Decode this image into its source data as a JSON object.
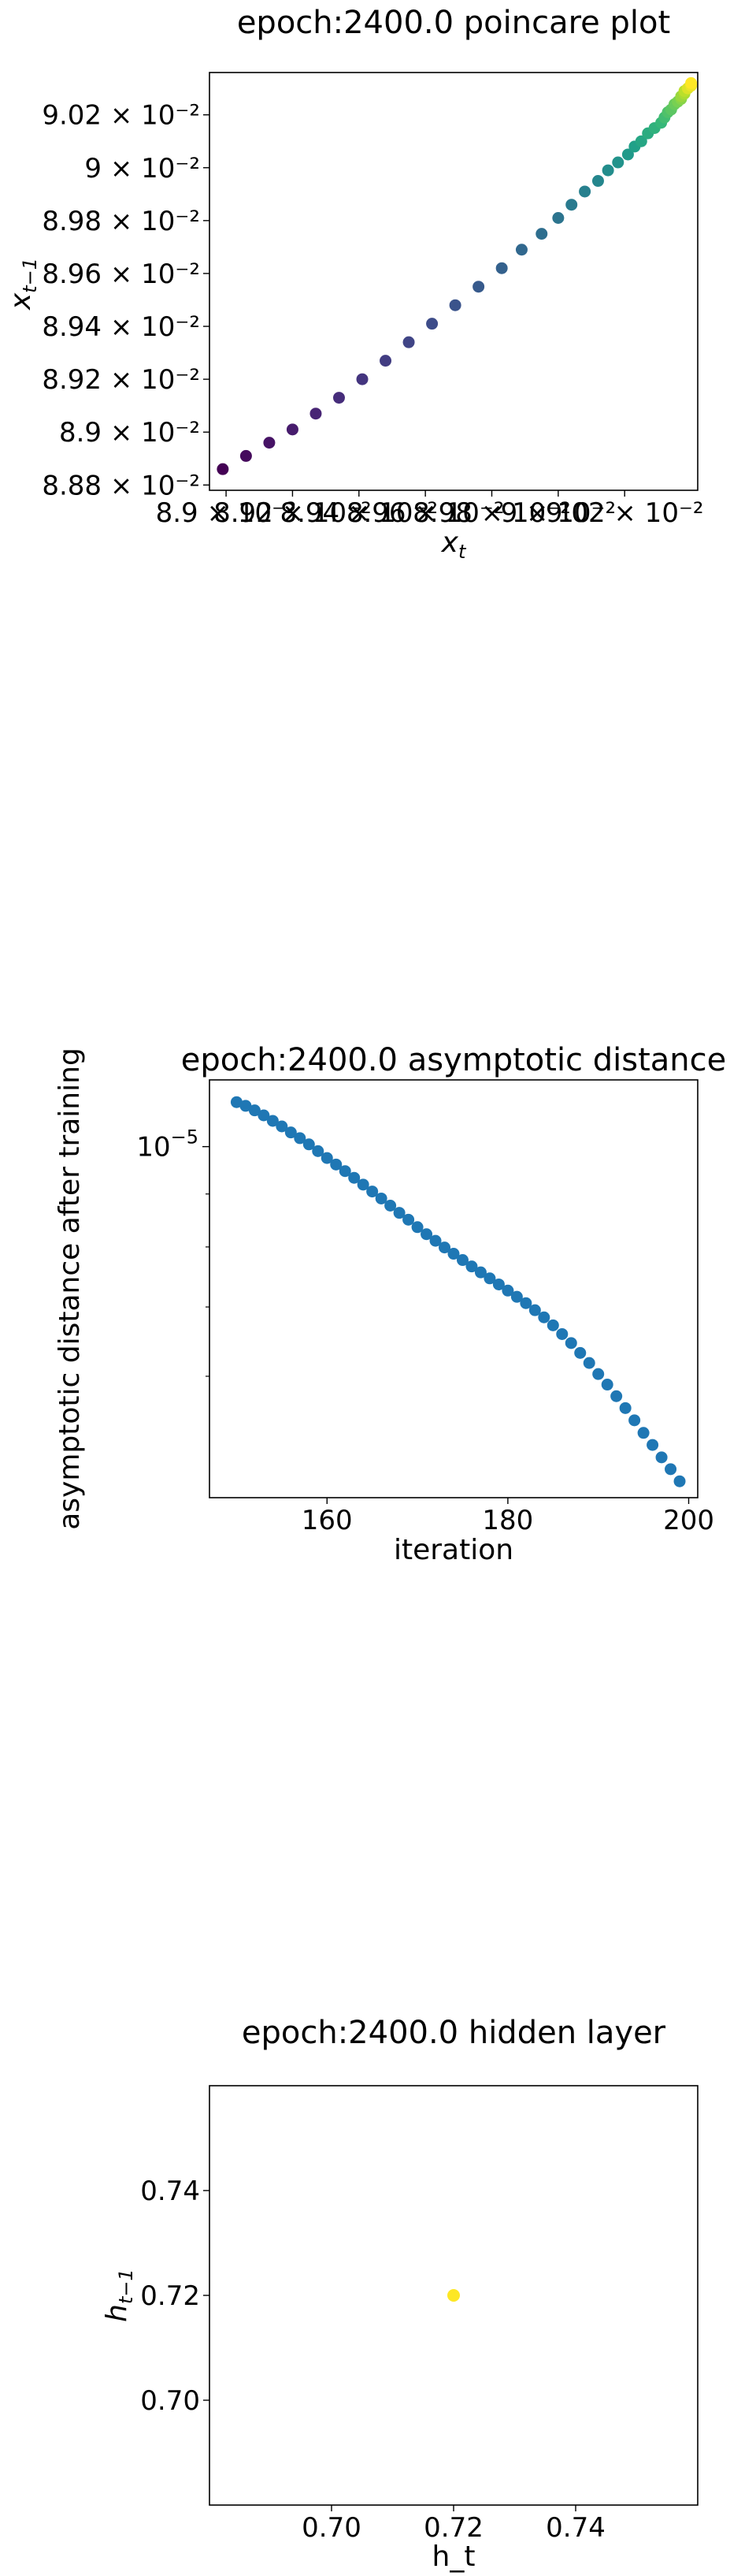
{
  "chart_data": [
    {
      "type": "scatter",
      "title": "epoch:2400.0 poincare plot",
      "xlabel_base": "x",
      "xlabel_sub": "t",
      "ylabel_base": "x",
      "ylabel_sub": "t−1",
      "color_map": "viridis",
      "xlim": [
        0.08895,
        0.09042
      ],
      "ylim": [
        0.08878,
        0.09036
      ],
      "x_tick_labels": [
        "8.9 × 10⁻²",
        "8.92 × 10⁻²",
        "8.94 × 10⁻²",
        "8.96 × 10⁻²",
        "8.98 × 10⁻²",
        "9 × 10⁻²",
        "9.02 × 10⁻²"
      ],
      "x_tick_values": [
        0.089,
        0.0892,
        0.0894,
        0.0896,
        0.0898,
        0.09,
        0.0902
      ],
      "y_tick_labels": [
        "8.88 × 10⁻²",
        "8.9 × 10⁻²",
        "8.92 × 10⁻²",
        "8.94 × 10⁻²",
        "8.96 × 10⁻²",
        "8.98 × 10⁻²",
        "9 × 10⁻²",
        "9.02 × 10⁻²"
      ],
      "y_tick_values": [
        0.0888,
        0.089,
        0.0892,
        0.0894,
        0.0896,
        0.0898,
        0.09,
        0.0902
      ],
      "points": [
        [
          0.08899,
          0.08886
        ],
        [
          0.08906,
          0.08891
        ],
        [
          0.08913,
          0.08896
        ],
        [
          0.0892,
          0.08901
        ],
        [
          0.08927,
          0.08907
        ],
        [
          0.08934,
          0.08913
        ],
        [
          0.08941,
          0.0892
        ],
        [
          0.08948,
          0.08927
        ],
        [
          0.08955,
          0.08934
        ],
        [
          0.08962,
          0.08941
        ],
        [
          0.08969,
          0.08948
        ],
        [
          0.08976,
          0.08955
        ],
        [
          0.08983,
          0.08962
        ],
        [
          0.08989,
          0.08969
        ],
        [
          0.08995,
          0.08975
        ],
        [
          0.09,
          0.08981
        ],
        [
          0.09004,
          0.08986
        ],
        [
          0.09008,
          0.08991
        ],
        [
          0.09012,
          0.08995
        ],
        [
          0.09015,
          0.08999
        ],
        [
          0.09018,
          0.09002
        ],
        [
          0.09021,
          0.09005
        ],
        [
          0.09023,
          0.09008
        ],
        [
          0.09025,
          0.0901
        ],
        [
          0.09027,
          0.09013
        ],
        [
          0.09029,
          0.09015
        ],
        [
          0.09031,
          0.09017
        ],
        [
          0.09032,
          0.09019
        ],
        [
          0.09033,
          0.09021
        ],
        [
          0.09034,
          0.09022
        ],
        [
          0.09035,
          0.09024
        ],
        [
          0.09036,
          0.09025
        ],
        [
          0.09037,
          0.09026
        ],
        [
          0.09037,
          0.09027
        ],
        [
          0.09038,
          0.09028
        ],
        [
          0.09038,
          0.09029
        ],
        [
          0.09039,
          0.0903
        ],
        [
          0.09039,
          0.0903
        ],
        [
          0.0904,
          0.09031
        ],
        [
          0.0904,
          0.09032
        ]
      ]
    },
    {
      "type": "scatter",
      "title": "epoch:2400.0 asymptotic distance",
      "xlabel": "iteration",
      "ylabel": "asymptotic distance after training",
      "y_scale": "log",
      "point_color": "#1f77b4",
      "xlim": [
        147,
        201
      ],
      "ylim": [
        4.58e-06,
        1.16e-05
      ],
      "x_ticks": [
        160,
        180,
        200
      ],
      "y_tick_label_base": "10",
      "y_tick_label_exp": "−5",
      "y_tick_value": 1e-05,
      "y_minor_ticks": [
        6e-06,
        7e-06,
        8e-06,
        9e-06
      ],
      "x": [
        150,
        151,
        152,
        153,
        154,
        155,
        156,
        157,
        158,
        159,
        160,
        161,
        162,
        163,
        164,
        165,
        166,
        167,
        168,
        169,
        170,
        171,
        172,
        173,
        174,
        175,
        176,
        177,
        178,
        179,
        180,
        181,
        182,
        183,
        184,
        185,
        186,
        187,
        188,
        189,
        190,
        191,
        192,
        193,
        194,
        195,
        196,
        197,
        198,
        199
      ],
      "y": [
        1.104e-05,
        1.095e-05,
        1.084e-05,
        1.072e-05,
        1.059e-05,
        1.046e-05,
        1.032e-05,
        1.019e-05,
        1.005e-05,
        9.9e-06,
        9.75e-06,
        9.61e-06,
        9.47e-06,
        9.33e-06,
        9.19e-06,
        9.05e-06,
        8.91e-06,
        8.77e-06,
        8.63e-06,
        8.5e-06,
        8.36e-06,
        8.23e-06,
        8.11e-06,
        7.99e-06,
        7.88e-06,
        7.77e-06,
        7.66e-06,
        7.56e-06,
        7.46e-06,
        7.36e-06,
        7.26e-06,
        7.16e-06,
        7.06e-06,
        6.95e-06,
        6.84e-06,
        6.72e-06,
        6.59e-06,
        6.46e-06,
        6.32e-06,
        6.18e-06,
        6.03e-06,
        5.89e-06,
        5.74e-06,
        5.59e-06,
        5.44e-06,
        5.29e-06,
        5.15e-06,
        5.01e-06,
        4.88e-06,
        4.75e-06
      ]
    },
    {
      "type": "scatter",
      "title": "epoch:2400.0 hidden layer",
      "xlabel": "h_t",
      "ylabel_base": "h",
      "ylabel_sub": "t−1",
      "point_color": "#fde725",
      "xlim": [
        0.68,
        0.76
      ],
      "ylim": [
        0.68,
        0.76
      ],
      "x_ticks": [
        "0.70",
        "0.72",
        "0.74"
      ],
      "y_ticks": [
        "0.70",
        "0.72",
        "0.74"
      ],
      "points": [
        [
          0.72,
          0.72
        ]
      ]
    }
  ]
}
